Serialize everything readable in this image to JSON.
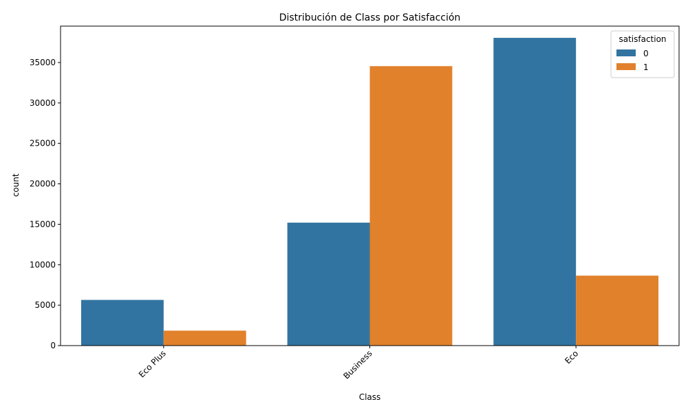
{
  "chart_data": {
    "type": "bar",
    "title": "Distribución de Class por Satisfacción",
    "xlabel": "Class",
    "ylabel": "count",
    "categories": [
      "Eco Plus",
      "Business",
      "Eco"
    ],
    "series": [
      {
        "name": "0",
        "color": "#3274a1",
        "values": [
          5650,
          15200,
          38050
        ]
      },
      {
        "name": "1",
        "color": "#e1812c",
        "values": [
          1850,
          34550,
          8650
        ]
      }
    ],
    "ylim": [
      0,
      39500
    ],
    "yticks": [
      0,
      5000,
      10000,
      15000,
      20000,
      25000,
      30000,
      35000
    ],
    "legend": {
      "title": "satisfaction",
      "placement": "top-right"
    },
    "grid": false,
    "x_tick_rotation": 45
  }
}
